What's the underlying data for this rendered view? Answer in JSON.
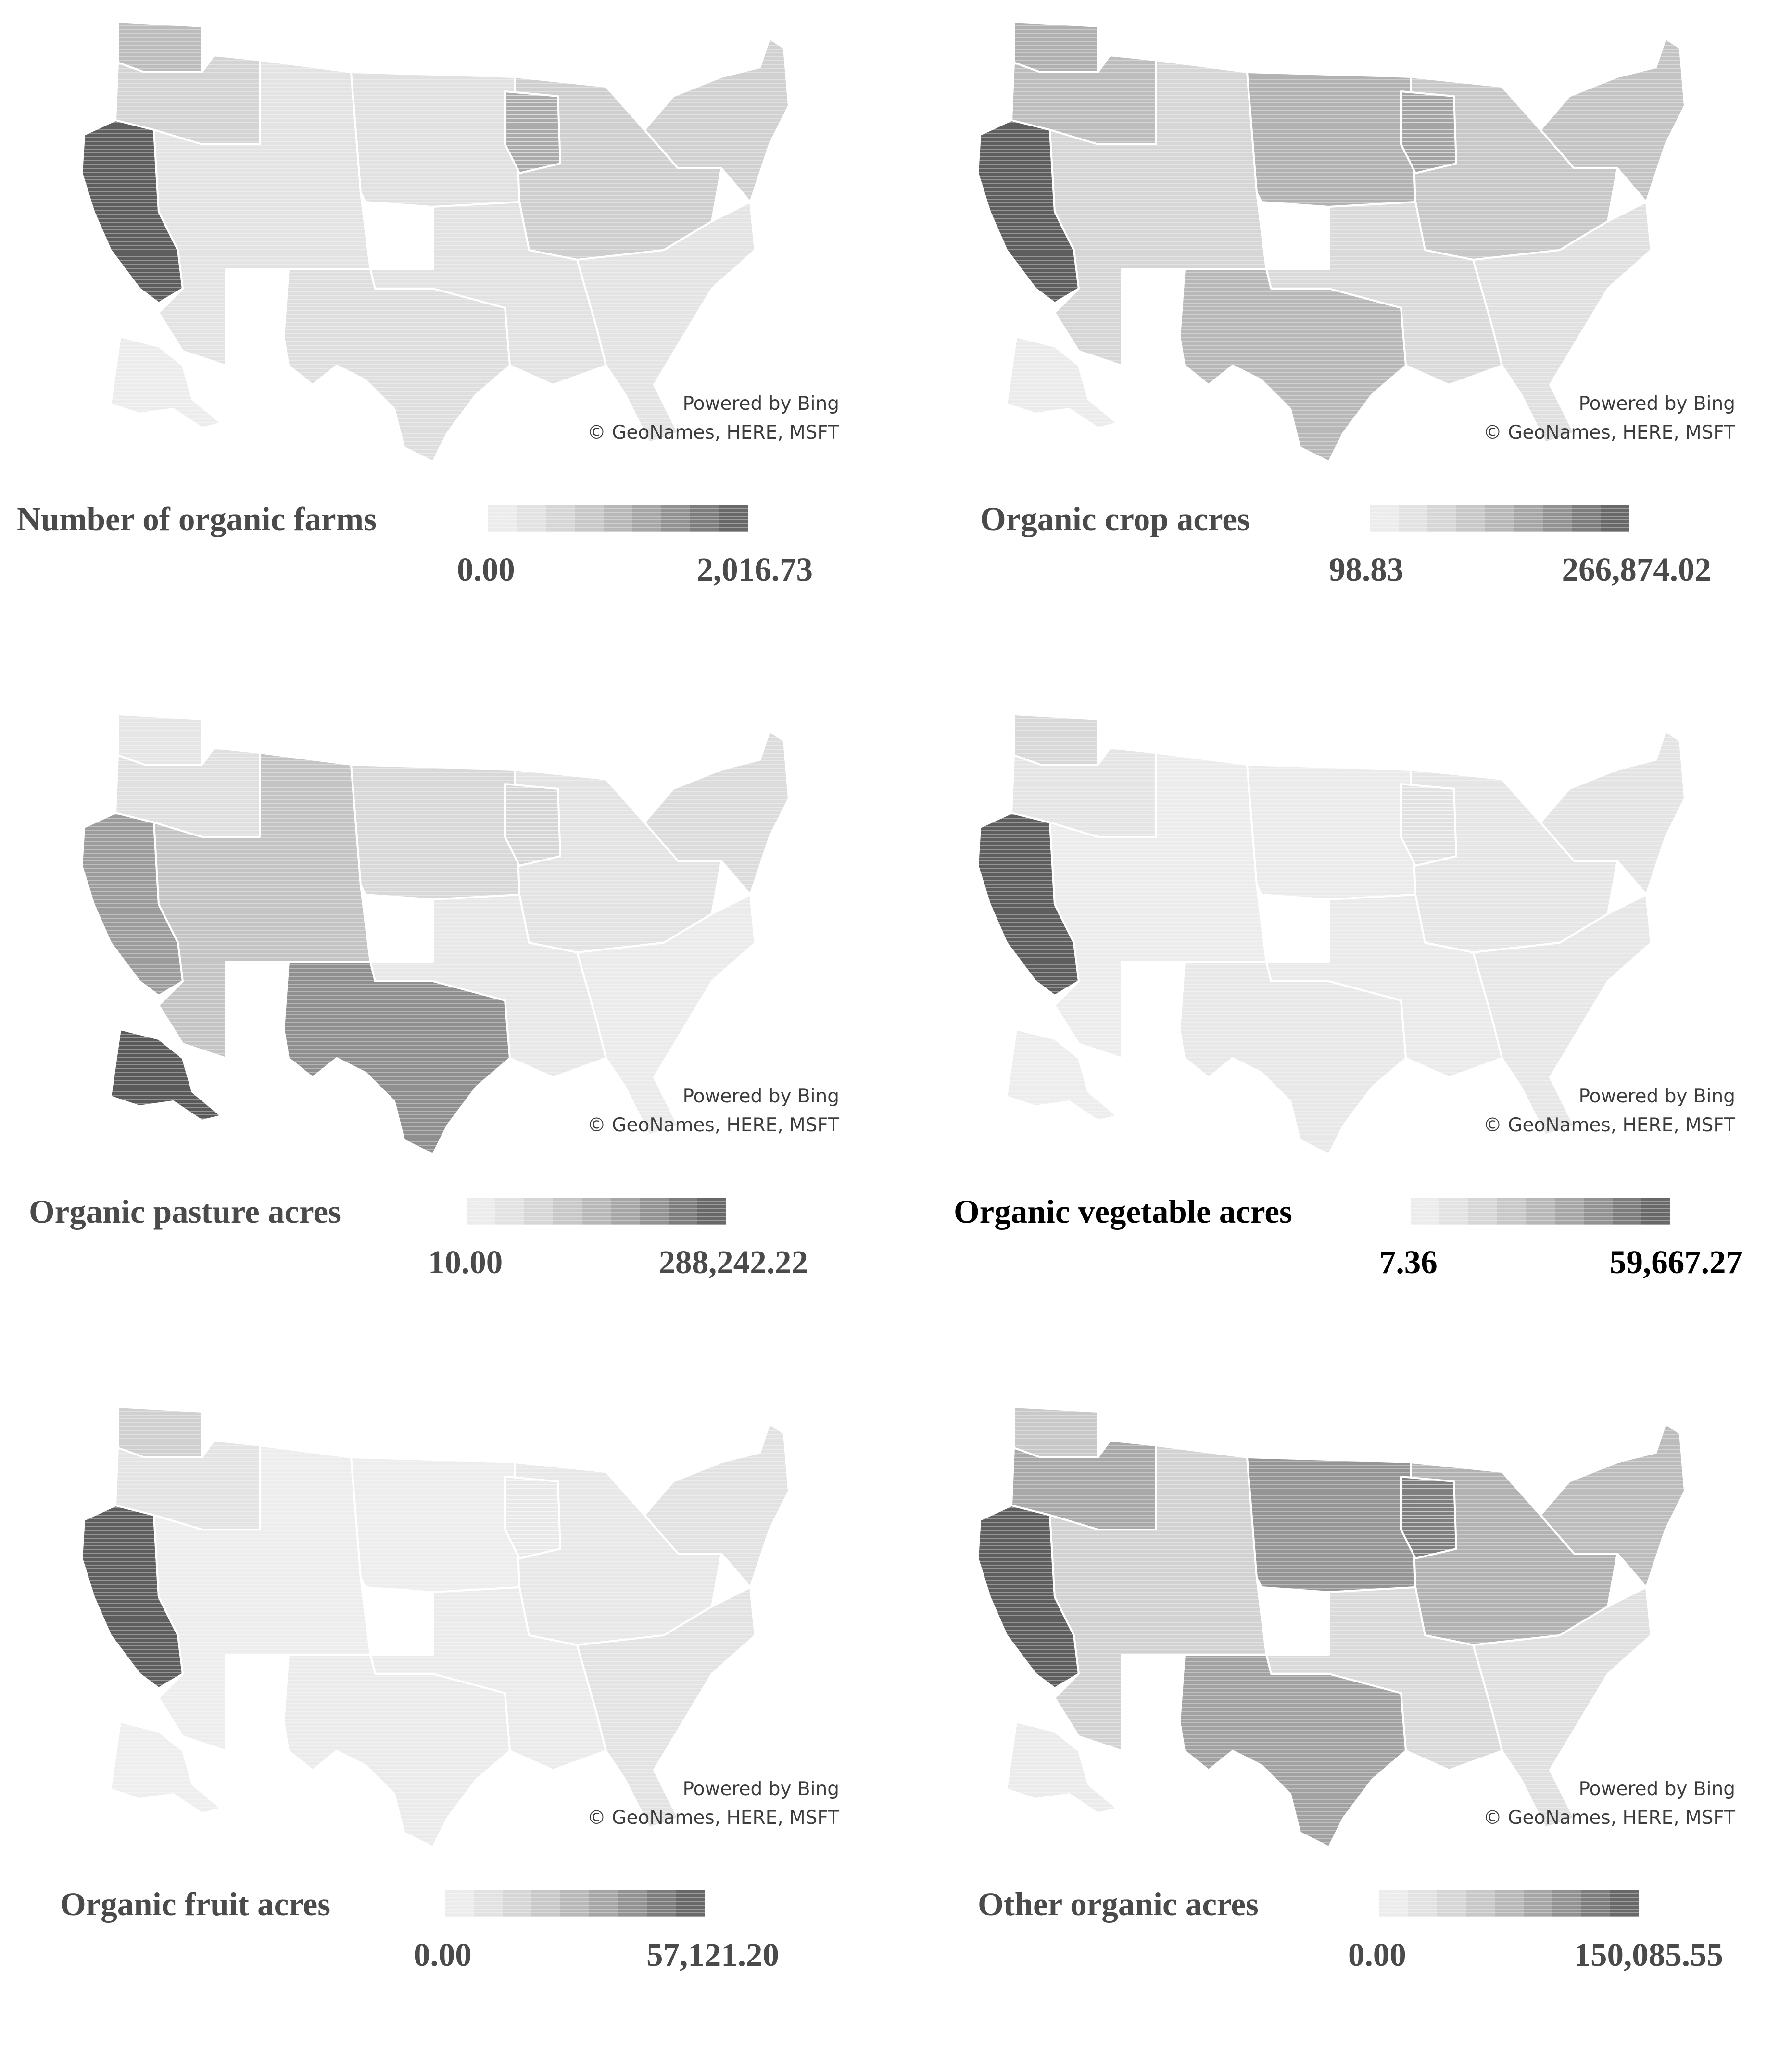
{
  "attribution": {
    "line1": "Powered by Bing",
    "line2": "© GeoNames, HERE, MSFT"
  },
  "panels": [
    {
      "legend": {
        "title": "Number of organic farms",
        "min": "0.00",
        "max": "2,016.73"
      },
      "shading": {
        "pacific": "#5e5e5e",
        "northwest": "#d4d4d4",
        "washington": "#bcbcbc",
        "mountain": "#e3e3e3",
        "plains": "#e1e1e1",
        "midwest": "#cfcfcf",
        "wisconsin": "#ababab",
        "south": "#e2e2e2",
        "texas": "#dedede",
        "southeast": "#e4e4e4",
        "northeast": "#d1d1d1",
        "alaska": "#ececec"
      }
    },
    {
      "legend": {
        "title": "Organic crop acres",
        "min": "98.83",
        "max": "266,874.02"
      },
      "shading": {
        "pacific": "#5e5e5e",
        "northwest": "#bdbdbd",
        "washington": "#b0b0b0",
        "mountain": "#d6d6d6",
        "plains": "#b2b2b2",
        "midwest": "#c8c8c8",
        "wisconsin": "#a4a4a4",
        "south": "#dadada",
        "texas": "#b8b8b8",
        "southeast": "#e0e0e0",
        "northeast": "#c4c4c4",
        "alaska": "#ebebeb"
      }
    },
    {
      "legend": {
        "title": "Organic pasture acres",
        "min": "10.00",
        "max": "288,242.22"
      },
      "shading": {
        "pacific": "#9c9c9c",
        "northwest": "#e0e0e0",
        "washington": "#e6e6e6",
        "mountain": "#c4c4c4",
        "plains": "#d8d8d8",
        "midwest": "#e3e3e3",
        "wisconsin": "#d6d6d6",
        "south": "#e8e8e8",
        "texas": "#8f8f8f",
        "southeast": "#ebebeb",
        "northeast": "#dcdcdc",
        "alaska": "#5a5a5a"
      }
    },
    {
      "legend": {
        "title": "Organic vegetable acres",
        "min": "7.36",
        "max": "59,667.27"
      },
      "shading": {
        "pacific": "#5e5e5e",
        "northwest": "#e5e5e5",
        "washington": "#d8d8d8",
        "mountain": "#ececec",
        "plains": "#ebebeb",
        "midwest": "#e6e6e6",
        "wisconsin": "#e2e2e2",
        "south": "#eaeaea",
        "texas": "#e8e8e8",
        "southeast": "#e7e7e7",
        "northeast": "#e4e4e4",
        "alaska": "#ededed"
      }
    },
    {
      "legend": {
        "title": "Organic fruit acres",
        "min": "0.00",
        "max": "57,121.20"
      },
      "shading": {
        "pacific": "#5e5e5e",
        "northwest": "#e4e4e4",
        "washington": "#d0d0d0",
        "mountain": "#ededed",
        "plains": "#ededed",
        "midwest": "#e8e8e8",
        "wisconsin": "#e9e9e9",
        "south": "#ebebeb",
        "texas": "#ebebeb",
        "southeast": "#e3e3e3",
        "northeast": "#e2e2e2",
        "alaska": "#eeeeee"
      }
    },
    {
      "legend": {
        "title": "Other organic acres",
        "min": "0.00",
        "max": "150,085.55"
      },
      "shading": {
        "pacific": "#5e5e5e",
        "northwest": "#a8a8a8",
        "washington": "#c8c8c8",
        "mountain": "#d2d2d2",
        "plains": "#959595",
        "midwest": "#b2b2b2",
        "wisconsin": "#7f7f7f",
        "south": "#dadada",
        "texas": "#a2a2a2",
        "southeast": "#e0e0e0",
        "northeast": "#bcbcbc",
        "alaska": "#ebebeb"
      }
    }
  ],
  "colors": {
    "legend_ramp": [
      "#ececec",
      "#e2e2e2",
      "#d6d6d6",
      "#c8c8c8",
      "#b8b8b8",
      "#a6a6a6",
      "#929292",
      "#7d7d7d",
      "#686868"
    ],
    "title_dark": "#000000",
    "title_mid": "#4a4a4a",
    "value_mid": "#4a4a4a",
    "value_dark": "#000000"
  }
}
